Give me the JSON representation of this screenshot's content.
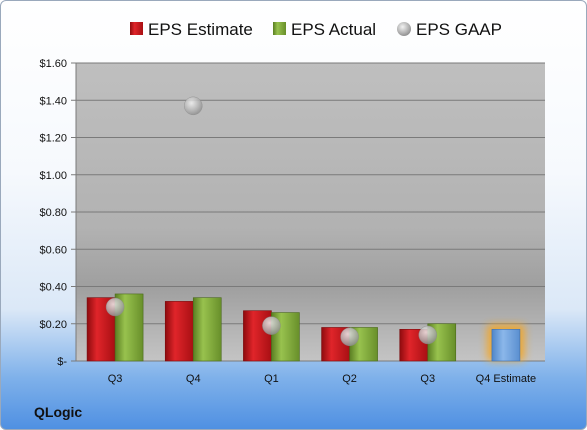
{
  "company": "QLogic",
  "colors": {
    "estimate": "#c8181c",
    "actual": "#7fa83c",
    "gaap": "#a9a9a9",
    "forecast": "#6a9fdc",
    "forecast_glow": "#f5a623"
  },
  "chart_data": {
    "type": "bar",
    "title": "",
    "xlabel": "",
    "ylabel": "",
    "categories": [
      "Q3",
      "Q4",
      "Q1",
      "Q2",
      "Q3",
      "Q4 Estimate"
    ],
    "ylim": [
      0,
      1.6
    ],
    "yticks": [
      {
        "value": 0,
        "label": "$-"
      },
      {
        "value": 0.2,
        "label": "$0.20"
      },
      {
        "value": 0.4,
        "label": "$0.40"
      },
      {
        "value": 0.6,
        "label": "$0.60"
      },
      {
        "value": 0.8,
        "label": "$0.80"
      },
      {
        "value": 1.0,
        "label": "$1.00"
      },
      {
        "value": 1.2,
        "label": "$1.20"
      },
      {
        "value": 1.4,
        "label": "$1.40"
      },
      {
        "value": 1.6,
        "label": "$1.60"
      }
    ],
    "grid": true,
    "legend_position": "top",
    "series": [
      {
        "name": "EPS Estimate",
        "kind": "bar",
        "values": [
          0.34,
          0.32,
          0.27,
          0.18,
          0.17,
          0.17
        ]
      },
      {
        "name": "EPS Actual",
        "kind": "bar",
        "values": [
          0.36,
          0.34,
          0.26,
          0.18,
          0.2,
          null
        ]
      },
      {
        "name": "EPS GAAP",
        "kind": "scatter",
        "values": [
          0.29,
          1.37,
          0.19,
          0.13,
          0.14,
          null
        ]
      }
    ]
  }
}
